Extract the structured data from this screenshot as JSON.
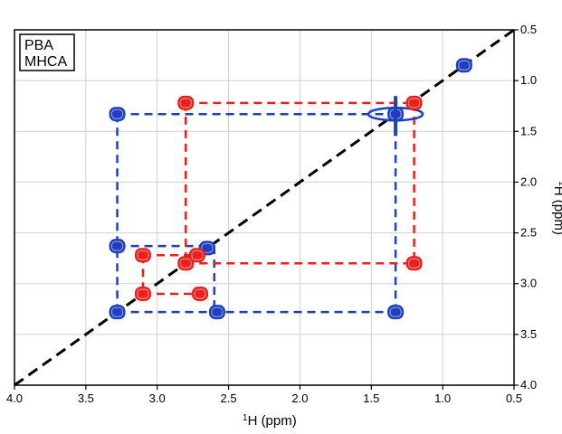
{
  "chart_data": {
    "type": "scatter",
    "subtype": "2D NMR COSY contour plot",
    "title": "",
    "xlabel": {
      "sup": "1",
      "text": "H (ppm)"
    },
    "ylabel": {
      "sup": "1",
      "text": "H (ppm)"
    },
    "xlim": [
      4.0,
      0.5
    ],
    "ylim": [
      4.0,
      0.5
    ],
    "x_ticks": [
      "4.0",
      "3.5",
      "3.0",
      "2.5",
      "2.0",
      "1.5",
      "1.0",
      "0.5"
    ],
    "y_ticks": [
      "0.5",
      "1.0",
      "1.5",
      "2.0",
      "2.5",
      "3.0",
      "3.5",
      "4.0"
    ],
    "x_reversed": true,
    "y_axis_side": "right",
    "y_increases_downward": true,
    "grid": true,
    "legend_placement": "top-left",
    "diagonal": {
      "color": "#000000",
      "style": "dashed",
      "from": [
        4.0,
        4.0
      ],
      "to": [
        0.5,
        0.5
      ]
    },
    "series": [
      {
        "name": "PBA",
        "color": "#1f3fbf",
        "peaks": [
          {
            "x": 3.28,
            "y": 1.33
          },
          {
            "x": 3.28,
            "y": 2.63
          },
          {
            "x": 3.28,
            "y": 3.28
          },
          {
            "x": 2.65,
            "y": 2.65
          },
          {
            "x": 2.58,
            "y": 3.28
          },
          {
            "x": 1.33,
            "y": 1.33
          },
          {
            "x": 1.33,
            "y": 3.28
          },
          {
            "x": 0.85,
            "y": 0.85
          }
        ],
        "connectors": [
          {
            "x": [
              3.28,
              1.33
            ],
            "y": [
              1.33,
              1.33
            ]
          },
          {
            "x": [
              3.28,
              3.28
            ],
            "y": [
              1.33,
              3.28
            ]
          },
          {
            "x": [
              3.28,
              1.33
            ],
            "y": [
              3.28,
              3.28
            ]
          },
          {
            "x": [
              1.33,
              1.33
            ],
            "y": [
              1.33,
              3.28
            ]
          },
          {
            "x": [
              3.28,
              2.6
            ],
            "y": [
              2.63,
              2.63
            ]
          },
          {
            "x": [
              2.6,
              2.6
            ],
            "y": [
              2.63,
              3.28
            ]
          }
        ]
      },
      {
        "name": "MHCA",
        "color": "#e8211d",
        "peaks": [
          {
            "x": 2.8,
            "y": 1.22
          },
          {
            "x": 1.2,
            "y": 1.22
          },
          {
            "x": 3.1,
            "y": 2.72
          },
          {
            "x": 3.1,
            "y": 3.1
          },
          {
            "x": 2.8,
            "y": 2.8
          },
          {
            "x": 2.72,
            "y": 2.72
          },
          {
            "x": 2.7,
            "y": 3.1
          },
          {
            "x": 1.2,
            "y": 2.8
          }
        ],
        "connectors": [
          {
            "x": [
              2.8,
              1.2
            ],
            "y": [
              1.22,
              1.22
            ]
          },
          {
            "x": [
              2.8,
              2.8
            ],
            "y": [
              1.22,
              2.8
            ]
          },
          {
            "x": [
              2.8,
              1.2
            ],
            "y": [
              2.8,
              2.8
            ]
          },
          {
            "x": [
              1.2,
              1.2
            ],
            "y": [
              1.22,
              2.8
            ]
          },
          {
            "x": [
              3.1,
              2.7
            ],
            "y": [
              2.72,
              2.72
            ]
          },
          {
            "x": [
              3.1,
              2.7
            ],
            "y": [
              3.1,
              3.1
            ]
          },
          {
            "x": [
              3.1,
              3.1
            ],
            "y": [
              2.72,
              3.1
            ]
          }
        ]
      }
    ]
  }
}
